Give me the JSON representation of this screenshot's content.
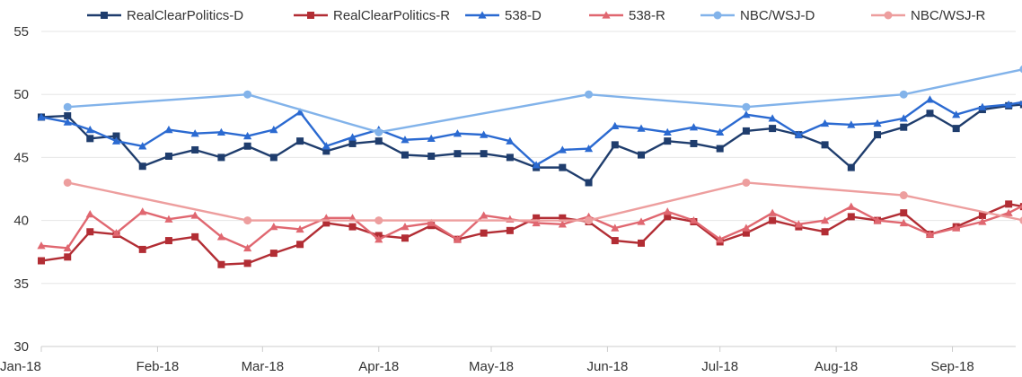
{
  "chart_data": {
    "type": "line",
    "x_range": [
      "2018-01-01",
      "2018-09-30"
    ],
    "ylim": [
      30,
      55
    ],
    "y_ticks": [
      "30",
      "35",
      "40",
      "45",
      "50",
      "55"
    ],
    "x_ticks": [
      {
        "label": "Jan-18",
        "date": "2018-01-01"
      },
      {
        "label": "Feb-18",
        "date": "2018-02-01"
      },
      {
        "label": "Mar-18",
        "date": "2018-03-01"
      },
      {
        "label": "Apr-18",
        "date": "2018-04-01"
      },
      {
        "label": "May-18",
        "date": "2018-05-01"
      },
      {
        "label": "Jun-18",
        "date": "2018-06-01"
      },
      {
        "label": "Jul-18",
        "date": "2018-07-01"
      },
      {
        "label": "Aug-18",
        "date": "2018-08-01"
      },
      {
        "label": "Sep-18",
        "date": "2018-09-01"
      }
    ],
    "grid": "horizontal",
    "legend_position": "top",
    "series": [
      {
        "name": "RealClearPolitics-D",
        "color": "#1f3d6d",
        "marker": "square",
        "points": [
          [
            "2018-01-01",
            48.2
          ],
          [
            "2018-01-08",
            48.3
          ],
          [
            "2018-01-14",
            46.5
          ],
          [
            "2018-01-21",
            46.7
          ],
          [
            "2018-01-28",
            44.3
          ],
          [
            "2018-02-04",
            45.1
          ],
          [
            "2018-02-11",
            45.6
          ],
          [
            "2018-02-18",
            45.0
          ],
          [
            "2018-02-25",
            45.9
          ],
          [
            "2018-03-04",
            45.0
          ],
          [
            "2018-03-11",
            46.3
          ],
          [
            "2018-03-18",
            45.5
          ],
          [
            "2018-03-25",
            46.1
          ],
          [
            "2018-04-01",
            46.3
          ],
          [
            "2018-04-08",
            45.2
          ],
          [
            "2018-04-15",
            45.1
          ],
          [
            "2018-04-22",
            45.3
          ],
          [
            "2018-04-29",
            45.3
          ],
          [
            "2018-05-06",
            45.0
          ],
          [
            "2018-05-13",
            44.2
          ],
          [
            "2018-05-20",
            44.2
          ],
          [
            "2018-05-27",
            43.0
          ],
          [
            "2018-06-03",
            46.0
          ],
          [
            "2018-06-10",
            45.2
          ],
          [
            "2018-06-17",
            46.3
          ],
          [
            "2018-06-24",
            46.1
          ],
          [
            "2018-07-01",
            45.7
          ],
          [
            "2018-07-08",
            47.1
          ],
          [
            "2018-07-15",
            47.3
          ],
          [
            "2018-07-22",
            46.8
          ],
          [
            "2018-07-29",
            46.0
          ],
          [
            "2018-08-05",
            44.2
          ],
          [
            "2018-08-12",
            46.8
          ],
          [
            "2018-08-19",
            47.4
          ],
          [
            "2018-08-26",
            48.5
          ],
          [
            "2018-09-02",
            47.3
          ],
          [
            "2018-09-09",
            48.8
          ],
          [
            "2018-09-16",
            49.1
          ],
          [
            "2018-09-20",
            49.2
          ]
        ]
      },
      {
        "name": "RealClearPolitics-R",
        "color": "#b22d34",
        "marker": "square",
        "points": [
          [
            "2018-01-01",
            36.8
          ],
          [
            "2018-01-08",
            37.1
          ],
          [
            "2018-01-14",
            39.1
          ],
          [
            "2018-01-21",
            38.9
          ],
          [
            "2018-01-28",
            37.7
          ],
          [
            "2018-02-04",
            38.4
          ],
          [
            "2018-02-11",
            38.7
          ],
          [
            "2018-02-18",
            36.5
          ],
          [
            "2018-02-25",
            36.6
          ],
          [
            "2018-03-04",
            37.4
          ],
          [
            "2018-03-11",
            38.1
          ],
          [
            "2018-03-18",
            39.8
          ],
          [
            "2018-03-25",
            39.5
          ],
          [
            "2018-04-01",
            38.8
          ],
          [
            "2018-04-08",
            38.6
          ],
          [
            "2018-04-15",
            39.6
          ],
          [
            "2018-04-22",
            38.5
          ],
          [
            "2018-04-29",
            39.0
          ],
          [
            "2018-05-06",
            39.2
          ],
          [
            "2018-05-13",
            40.2
          ],
          [
            "2018-05-20",
            40.2
          ],
          [
            "2018-05-27",
            39.9
          ],
          [
            "2018-06-03",
            38.4
          ],
          [
            "2018-06-10",
            38.2
          ],
          [
            "2018-06-17",
            40.3
          ],
          [
            "2018-06-24",
            39.9
          ],
          [
            "2018-07-01",
            38.3
          ],
          [
            "2018-07-08",
            39.0
          ],
          [
            "2018-07-15",
            40.0
          ],
          [
            "2018-07-22",
            39.5
          ],
          [
            "2018-07-29",
            39.1
          ],
          [
            "2018-08-05",
            40.3
          ],
          [
            "2018-08-12",
            40.0
          ],
          [
            "2018-08-19",
            40.6
          ],
          [
            "2018-08-26",
            38.9
          ],
          [
            "2018-09-02",
            39.5
          ],
          [
            "2018-09-09",
            40.4
          ],
          [
            "2018-09-16",
            41.3
          ],
          [
            "2018-09-20",
            41.1
          ]
        ]
      },
      {
        "name": "538-D",
        "color": "#2b6ad1",
        "marker": "triangle",
        "points": [
          [
            "2018-01-01",
            48.2
          ],
          [
            "2018-01-08",
            47.8
          ],
          [
            "2018-01-14",
            47.2
          ],
          [
            "2018-01-21",
            46.3
          ],
          [
            "2018-01-28",
            45.9
          ],
          [
            "2018-02-04",
            47.2
          ],
          [
            "2018-02-11",
            46.9
          ],
          [
            "2018-02-18",
            47.0
          ],
          [
            "2018-02-25",
            46.7
          ],
          [
            "2018-03-04",
            47.2
          ],
          [
            "2018-03-11",
            48.6
          ],
          [
            "2018-03-18",
            45.9
          ],
          [
            "2018-03-25",
            46.6
          ],
          [
            "2018-04-01",
            47.2
          ],
          [
            "2018-04-08",
            46.4
          ],
          [
            "2018-04-15",
            46.5
          ],
          [
            "2018-04-22",
            46.9
          ],
          [
            "2018-04-29",
            46.8
          ],
          [
            "2018-05-06",
            46.3
          ],
          [
            "2018-05-13",
            44.4
          ],
          [
            "2018-05-20",
            45.6
          ],
          [
            "2018-05-27",
            45.7
          ],
          [
            "2018-06-03",
            47.5
          ],
          [
            "2018-06-10",
            47.3
          ],
          [
            "2018-06-17",
            47.0
          ],
          [
            "2018-06-24",
            47.4
          ],
          [
            "2018-07-01",
            47.0
          ],
          [
            "2018-07-08",
            48.4
          ],
          [
            "2018-07-15",
            48.1
          ],
          [
            "2018-07-22",
            46.8
          ],
          [
            "2018-07-29",
            47.7
          ],
          [
            "2018-08-05",
            47.6
          ],
          [
            "2018-08-12",
            47.7
          ],
          [
            "2018-08-19",
            48.1
          ],
          [
            "2018-08-26",
            49.6
          ],
          [
            "2018-09-02",
            48.4
          ],
          [
            "2018-09-09",
            49.0
          ],
          [
            "2018-09-16",
            49.2
          ],
          [
            "2018-09-20",
            49.4
          ]
        ]
      },
      {
        "name": "538-R",
        "color": "#e06770",
        "marker": "triangle",
        "points": [
          [
            "2018-01-01",
            38.0
          ],
          [
            "2018-01-08",
            37.8
          ],
          [
            "2018-01-14",
            40.5
          ],
          [
            "2018-01-21",
            39.0
          ],
          [
            "2018-01-28",
            40.7
          ],
          [
            "2018-02-04",
            40.1
          ],
          [
            "2018-02-11",
            40.4
          ],
          [
            "2018-02-18",
            38.7
          ],
          [
            "2018-02-25",
            37.8
          ],
          [
            "2018-03-04",
            39.5
          ],
          [
            "2018-03-11",
            39.3
          ],
          [
            "2018-03-18",
            40.2
          ],
          [
            "2018-03-25",
            40.2
          ],
          [
            "2018-04-01",
            38.5
          ],
          [
            "2018-04-08",
            39.5
          ],
          [
            "2018-04-15",
            39.8
          ],
          [
            "2018-04-22",
            38.5
          ],
          [
            "2018-04-29",
            40.4
          ],
          [
            "2018-05-06",
            40.1
          ],
          [
            "2018-05-13",
            39.8
          ],
          [
            "2018-05-20",
            39.7
          ],
          [
            "2018-05-27",
            40.3
          ],
          [
            "2018-06-03",
            39.4
          ],
          [
            "2018-06-10",
            39.9
          ],
          [
            "2018-06-17",
            40.7
          ],
          [
            "2018-06-24",
            40.0
          ],
          [
            "2018-07-01",
            38.5
          ],
          [
            "2018-07-08",
            39.4
          ],
          [
            "2018-07-15",
            40.6
          ],
          [
            "2018-07-22",
            39.7
          ],
          [
            "2018-07-29",
            40.0
          ],
          [
            "2018-08-05",
            41.1
          ],
          [
            "2018-08-12",
            40.0
          ],
          [
            "2018-08-19",
            39.8
          ],
          [
            "2018-08-26",
            38.9
          ],
          [
            "2018-09-02",
            39.4
          ],
          [
            "2018-09-09",
            39.9
          ],
          [
            "2018-09-16",
            40.6
          ],
          [
            "2018-09-20",
            41.2
          ]
        ]
      },
      {
        "name": "NBC/WSJ-D",
        "color": "#82b3ea",
        "marker": "circle",
        "points": [
          [
            "2018-01-08",
            49.0
          ],
          [
            "2018-02-25",
            50.0
          ],
          [
            "2018-04-01",
            47.0
          ],
          [
            "2018-05-27",
            50.0
          ],
          [
            "2018-07-08",
            49.0
          ],
          [
            "2018-08-19",
            50.0
          ],
          [
            "2018-09-20",
            52.0
          ]
        ]
      },
      {
        "name": "NBC/WSJ-R",
        "color": "#ed9e9e",
        "marker": "circle",
        "points": [
          [
            "2018-01-08",
            43.0
          ],
          [
            "2018-02-25",
            40.0
          ],
          [
            "2018-04-01",
            40.0
          ],
          [
            "2018-05-27",
            40.0
          ],
          [
            "2018-07-08",
            43.0
          ],
          [
            "2018-08-19",
            42.0
          ],
          [
            "2018-09-20",
            40.0
          ]
        ]
      }
    ]
  }
}
